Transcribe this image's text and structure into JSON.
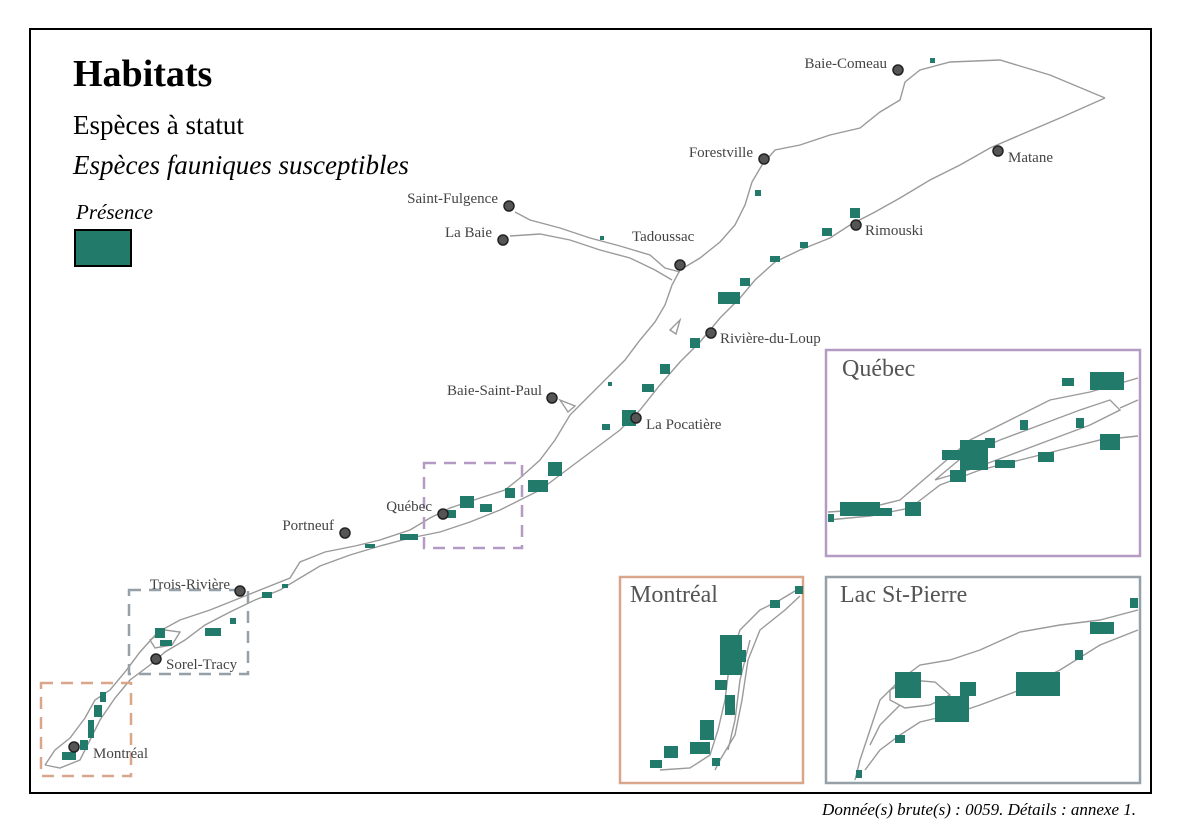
{
  "header": {
    "title": "Habitats",
    "subtitle": "Espèces à statut",
    "subtitle2": "Espèces fauniques susceptibles"
  },
  "legend": {
    "label": "Présence",
    "color": "#227a6b"
  },
  "source": "Donnée(s) brute(s) : 0059. Détails : annexe 1.",
  "cities": [
    {
      "name": "Baie-Comeau"
    },
    {
      "name": "Forestville"
    },
    {
      "name": "Matane"
    },
    {
      "name": "Saint-Fulgence"
    },
    {
      "name": "La Baie"
    },
    {
      "name": "Tadoussac"
    },
    {
      "name": "Rimouski"
    },
    {
      "name": "Rivière-du-Loup"
    },
    {
      "name": "Baie-Saint-Paul"
    },
    {
      "name": "La Pocatière"
    },
    {
      "name": "Québec"
    },
    {
      "name": "Portneuf"
    },
    {
      "name": "Trois-Rivière"
    },
    {
      "name": "Sorel-Tracy"
    },
    {
      "name": "Montréal"
    }
  ],
  "insets": {
    "quebec": {
      "title": "Québec",
      "color": "#b39bc4"
    },
    "montreal": {
      "title": "Montréal",
      "color": "#d9a68c"
    },
    "lacstpierre": {
      "title": "Lac St-Pierre",
      "color": "#96a0a8"
    }
  },
  "colors": {
    "river_outline": "#999999",
    "habitat": "#227a6b",
    "city_marker": "#444444"
  }
}
